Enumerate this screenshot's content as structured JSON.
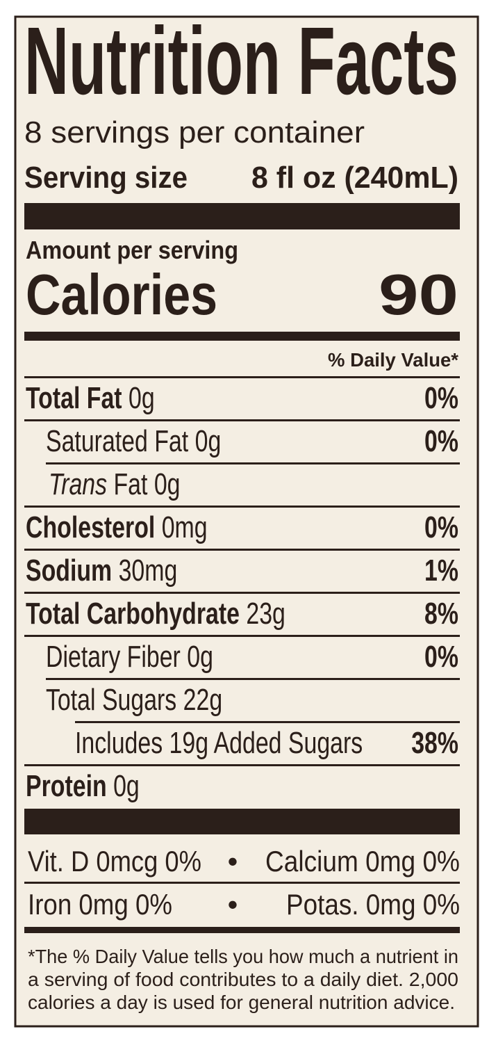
{
  "title": "Nutrition Facts",
  "servings_per_container": "8 servings per container",
  "serving_size": {
    "label": "Serving size",
    "value": "8 fl oz (240mL)"
  },
  "amount_per_serving": "Amount per serving",
  "calories": {
    "label": "Calories",
    "value": "90"
  },
  "daily_value_header": "% Daily Value*",
  "nutrients": [
    {
      "name": "Total Fat",
      "amount": "0g",
      "dv": "0%"
    },
    {
      "name": "Saturated Fat",
      "amount": "0g",
      "dv": "0%"
    },
    {
      "name_italic": "Trans",
      "name": "Fat",
      "amount": "0g"
    },
    {
      "name": "Cholesterol",
      "amount": "0mg",
      "dv": "0%"
    },
    {
      "name": "Sodium",
      "amount": "30mg",
      "dv": "1%"
    },
    {
      "name": "Total Carbohydrate",
      "amount": "23g",
      "dv": "8%"
    },
    {
      "name": "Dietary Fiber",
      "amount": "0g",
      "dv": "0%"
    },
    {
      "name": "Total Sugars",
      "amount": "22g"
    },
    {
      "name": "Includes 19g Added Sugars",
      "dv": "38%"
    },
    {
      "name": "Protein",
      "amount": "0g"
    }
  ],
  "vitamins": [
    [
      "Vit. D 0mcg 0%",
      "Calcium 0mg 0%"
    ],
    [
      "Iron 0mg 0%",
      "Potas. 0mg 0%"
    ]
  ],
  "separator": "•",
  "footnote": [
    "*The % Daily Value tells you how much a nutrient in",
    "a serving of food contributes to a daily diet. 2,000",
    "calories a day is used for general nutrition advice."
  ]
}
